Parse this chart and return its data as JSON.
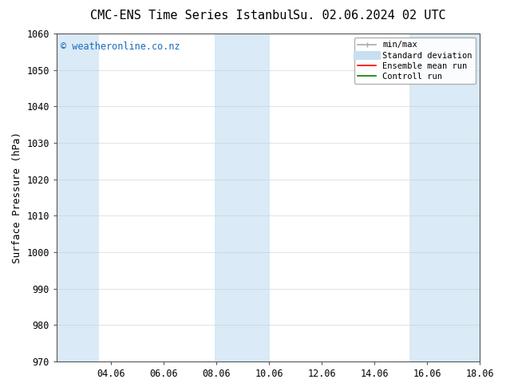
{
  "title": "CMC-ENS Time Series Istanbul",
  "title2": "Su. 02.06.2024 02 UTC",
  "ylabel": "Surface Pressure (hPa)",
  "ylim": [
    970,
    1060
  ],
  "yticks": [
    970,
    980,
    990,
    1000,
    1010,
    1020,
    1030,
    1040,
    1050,
    1060
  ],
  "xlim": [
    2.0,
    18.06
  ],
  "xticks": [
    4.06,
    6.06,
    8.06,
    10.06,
    12.06,
    14.06,
    16.06,
    18.06
  ],
  "xticklabels": [
    "04.06",
    "06.06",
    "08.06",
    "10.06",
    "12.06",
    "14.06",
    "16.06",
    "18.06"
  ],
  "watermark": "© weatheronline.co.nz",
  "watermark_color": "#1a6bbf",
  "bg_color": "#ffffff",
  "plot_bg_color": "#ffffff",
  "shaded_bands": [
    {
      "xmin": 2.0,
      "xmax": 3.6,
      "color": "#daeaf6"
    },
    {
      "xmin": 8.0,
      "xmax": 10.1,
      "color": "#daeaf6"
    },
    {
      "xmin": 15.4,
      "xmax": 18.06,
      "color": "#daeaf6"
    }
  ],
  "legend_entries": [
    {
      "label": "min/max",
      "color": "#aaaaaa",
      "lw": 1.2,
      "linestyle": "-"
    },
    {
      "label": "Standard deviation",
      "color": "#c8dff0",
      "lw": 8,
      "linestyle": "-"
    },
    {
      "label": "Ensemble mean run",
      "color": "#ff0000",
      "lw": 1.2,
      "linestyle": "-"
    },
    {
      "label": "Controll run",
      "color": "#008000",
      "lw": 1.2,
      "linestyle": "-"
    }
  ],
  "font_family": "monospace",
  "title_fontsize": 11,
  "axis_label_fontsize": 9,
  "tick_fontsize": 8.5,
  "legend_fontsize": 7.5,
  "watermark_fontsize": 8.5
}
